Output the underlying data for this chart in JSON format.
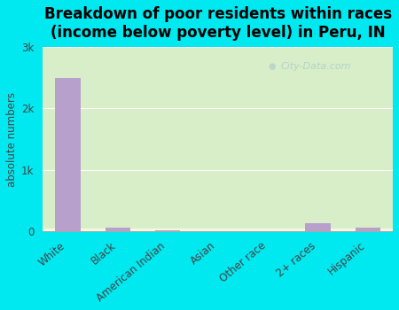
{
  "categories": [
    "White",
    "Black",
    "American Indian",
    "Asian",
    "Other race",
    "2+ races",
    "Hispanic"
  ],
  "values": [
    2500,
    60,
    15,
    0,
    0,
    130,
    60
  ],
  "bar_color": "#b8a0cc",
  "background_outer": "#00e8f0",
  "background_inner": "#dff0d0",
  "title_line1": "Breakdown of poor residents within races",
  "title_line2": "(income below poverty level) in Peru, IN",
  "ylabel": "absolute numbers",
  "ylim": [
    0,
    3000
  ],
  "yticks": [
    0,
    1000,
    2000,
    3000
  ],
  "ytick_labels": [
    "0",
    "1k",
    "2k",
    "3k"
  ],
  "watermark": "City-Data.com",
  "title_fontsize": 12,
  "label_fontsize": 8.5,
  "tick_fontsize": 8.5
}
